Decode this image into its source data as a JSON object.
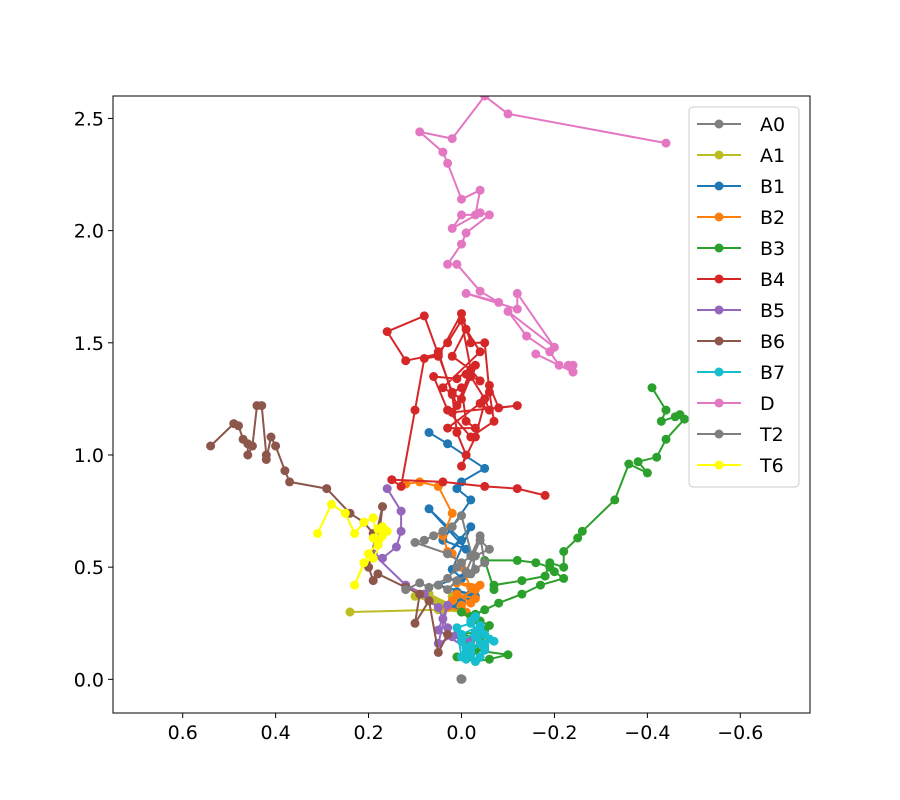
{
  "chart_data": {
    "type": "line",
    "title": "",
    "xlabel": "",
    "ylabel": "",
    "x_inverted": true,
    "xlim": [
      0.75,
      -0.75
    ],
    "ylim": [
      -0.15,
      2.6
    ],
    "x_ticks": [
      0.6,
      0.4,
      0.2,
      0.0,
      -0.2,
      -0.4,
      -0.6
    ],
    "x_tick_labels": [
      "0.6",
      "0.4",
      "0.2",
      "0.0",
      "−0.2",
      "−0.4",
      "−0.6"
    ],
    "y_ticks": [
      0.0,
      0.5,
      1.0,
      1.5,
      2.0,
      2.5
    ],
    "y_tick_labels": [
      "0.0",
      "0.5",
      "1.0",
      "1.5",
      "2.0",
      "2.5"
    ],
    "grid": false,
    "legend_position": "top-right",
    "series": [
      {
        "name": "A0",
        "color": "#7f7f7f",
        "x": [
          0.0,
          0.001,
          -0.001,
          0.0,
          0.001
        ],
        "y": [
          0.0,
          0.003,
          0.001,
          0.002,
          0.0
        ]
      },
      {
        "name": "A1",
        "color": "#bcbd22",
        "x": [
          0.24,
          0.05,
          0.0,
          0.02,
          -0.02,
          0.01,
          0.06,
          0.03,
          0.07,
          0.02,
          0.04,
          0.0,
          0.1
        ],
        "y": [
          0.3,
          0.31,
          0.33,
          0.37,
          0.36,
          0.34,
          0.35,
          0.32,
          0.38,
          0.33,
          0.31,
          0.3,
          0.37
        ]
      },
      {
        "name": "B1",
        "color": "#1f77b4",
        "x": [
          0.07,
          0.03,
          -0.05,
          0.0,
          0.01,
          -0.02,
          0.04,
          -0.01,
          0.07,
          0.0,
          0.03,
          -0.02,
          0.02,
          0.0,
          -0.01,
          0.05,
          -0.02,
          0.01,
          0.0,
          -0.03,
          0.02,
          0.0
        ],
        "y": [
          1.1,
          1.05,
          0.94,
          0.88,
          0.85,
          0.8,
          0.62,
          0.58,
          0.76,
          0.62,
          0.56,
          0.68,
          0.49,
          0.45,
          0.47,
          0.42,
          0.38,
          0.39,
          0.35,
          0.37,
          0.33,
          0.3
        ]
      },
      {
        "name": "B2",
        "color": "#ff7f0e",
        "x": [
          0.12,
          0.09,
          0.05,
          0.02,
          0.04,
          0.03,
          0.02,
          0.0,
          -0.02,
          0.01,
          -0.04,
          -0.03,
          0.02,
          0.03,
          -0.01,
          0.0,
          -0.03,
          0.01,
          -0.02
        ],
        "y": [
          0.87,
          0.88,
          0.86,
          0.74,
          0.64,
          0.57,
          0.56,
          0.5,
          0.41,
          0.43,
          0.42,
          0.4,
          0.35,
          0.32,
          0.3,
          0.33,
          0.36,
          0.38,
          0.34
        ]
      },
      {
        "name": "B3",
        "color": "#2ca02c",
        "x": [
          -0.41,
          -0.44,
          -0.43,
          -0.46,
          -0.47,
          -0.48,
          -0.44,
          -0.42,
          -0.38,
          -0.4,
          -0.36,
          -0.33,
          -0.26,
          -0.25,
          -0.22,
          -0.22,
          -0.19,
          -0.18,
          -0.13,
          -0.07,
          -0.07,
          -0.05,
          -0.12,
          -0.16,
          -0.19,
          -0.2,
          -0.22,
          -0.17,
          -0.13,
          -0.08,
          -0.05,
          -0.02,
          -0.06,
          -0.03,
          0.0,
          -0.04,
          -0.01,
          -0.05,
          -0.02,
          0.01,
          -0.03,
          -0.06,
          -0.1,
          -0.03,
          -0.01,
          -0.04,
          -0.02,
          0.0,
          -0.05,
          -0.03
        ],
        "y": [
          1.3,
          1.2,
          1.15,
          1.17,
          1.18,
          1.16,
          1.07,
          0.99,
          0.97,
          0.92,
          0.96,
          0.8,
          0.66,
          0.63,
          0.57,
          0.5,
          0.52,
          0.46,
          0.44,
          0.42,
          0.4,
          0.53,
          0.53,
          0.52,
          0.5,
          0.48,
          0.45,
          0.42,
          0.38,
          0.34,
          0.31,
          0.28,
          0.24,
          0.21,
          0.2,
          0.18,
          0.16,
          0.14,
          0.12,
          0.1,
          0.08,
          0.09,
          0.11,
          0.13,
          0.15,
          0.26,
          0.28,
          0.3,
          0.22,
          0.29
        ]
      },
      {
        "name": "B4",
        "color": "#d62728",
        "x": [
          -0.18,
          -0.12,
          -0.05,
          0.04,
          0.15,
          0.13,
          0.1,
          0.08,
          0.05,
          0.0,
          -0.02,
          -0.05,
          -0.06,
          -0.07,
          -0.02,
          0.03,
          0.06,
          0.01,
          -0.03,
          0.0,
          0.04,
          -0.04,
          -0.01,
          0.02,
          -0.02,
          0.01,
          0.08,
          0.16,
          0.12,
          0.05,
          0.02,
          0.0,
          -0.01,
          -0.03,
          0.03,
          -0.04,
          -0.06,
          -0.05,
          -0.02,
          0.02,
          -0.12,
          -0.08,
          -0.06,
          -0.03,
          0.0,
          -0.01,
          0.01,
          0.02,
          0.05,
          0.03,
          0.0,
          -0.02,
          -0.04,
          -0.01
        ],
        "y": [
          0.82,
          0.85,
          0.86,
          0.88,
          0.89,
          0.86,
          1.2,
          1.43,
          1.44,
          1.63,
          1.5,
          1.5,
          1.28,
          1.15,
          1.08,
          1.2,
          1.35,
          1.34,
          1.4,
          1.25,
          1.3,
          1.46,
          1.56,
          1.44,
          1.38,
          1.22,
          1.62,
          1.55,
          1.42,
          1.45,
          1.28,
          1.3,
          1.15,
          1.12,
          1.12,
          1.23,
          1.2,
          1.25,
          1.35,
          1.19,
          1.22,
          1.21,
          1.31,
          1.08,
          0.95,
          1.0,
          1.1,
          1.27,
          1.46,
          1.5,
          1.6,
          1.38,
          1.33,
          1.36
        ]
      },
      {
        "name": "B5",
        "color": "#9467bd",
        "x": [
          0.16,
          0.13,
          0.13,
          0.14,
          0.17,
          0.19,
          0.12,
          0.08,
          0.07,
          0.05,
          0.04,
          0.03,
          0.02,
          0.0,
          -0.02,
          0.01,
          0.05,
          0.03,
          0.05,
          -0.01
        ],
        "y": [
          0.85,
          0.75,
          0.66,
          0.59,
          0.54,
          0.56,
          0.42,
          0.38,
          0.35,
          0.32,
          0.27,
          0.23,
          0.19,
          0.18,
          0.17,
          0.2,
          0.16,
          0.33,
          0.22,
          0.14
        ]
      },
      {
        "name": "B6",
        "color": "#8c564b",
        "x": [
          0.54,
          0.49,
          0.48,
          0.47,
          0.46,
          0.46,
          0.45,
          0.44,
          0.43,
          0.42,
          0.42,
          0.41,
          0.4,
          0.38,
          0.37,
          0.29,
          0.24,
          0.21,
          0.19,
          0.18,
          0.17,
          0.2,
          0.19,
          0.18,
          0.12,
          0.09,
          0.1,
          0.07,
          0.05,
          0.03
        ],
        "y": [
          1.04,
          1.14,
          1.13,
          1.07,
          1.05,
          1.0,
          1.04,
          1.22,
          1.22,
          1.0,
          0.98,
          1.08,
          1.04,
          0.93,
          0.88,
          0.85,
          0.74,
          0.7,
          0.65,
          0.6,
          0.77,
          0.5,
          0.44,
          0.47,
          0.41,
          0.38,
          0.25,
          0.35,
          0.12,
          0.2
        ]
      },
      {
        "name": "B7",
        "color": "#17becf",
        "x": [
          -0.07,
          -0.05,
          -0.04,
          -0.03,
          -0.02,
          -0.01,
          0.0,
          0.01,
          -0.02,
          -0.03,
          -0.04,
          0.0,
          -0.01,
          -0.02,
          -0.03,
          -0.05,
          -0.06,
          -0.04,
          -0.02,
          -0.01,
          0.0,
          -0.03,
          -0.02,
          -0.05,
          -0.04
        ],
        "y": [
          0.17,
          0.2,
          0.22,
          0.19,
          0.15,
          0.12,
          0.1,
          0.23,
          0.25,
          0.28,
          0.24,
          0.2,
          0.14,
          0.11,
          0.08,
          0.13,
          0.18,
          0.16,
          0.12,
          0.09,
          0.17,
          0.21,
          0.26,
          0.15,
          0.1
        ]
      },
      {
        "name": "D",
        "color": "#e377c2",
        "x": [
          -0.44,
          -0.1,
          -0.05,
          0.02,
          0.09,
          0.04,
          0.03,
          0.0,
          -0.04,
          -0.03,
          0.0,
          0.02,
          -0.04,
          -0.06,
          -0.01,
          0.0,
          0.03,
          0.01,
          -0.04,
          -0.08,
          -0.01,
          -0.12,
          -0.12,
          -0.2,
          -0.1,
          -0.14,
          -0.19,
          -0.21,
          -0.24,
          -0.23,
          -0.24,
          -0.24,
          -0.24,
          -0.16
        ],
        "y": [
          2.39,
          2.52,
          2.6,
          2.41,
          2.44,
          2.35,
          2.3,
          2.14,
          2.18,
          2.07,
          2.07,
          2.01,
          2.08,
          2.07,
          1.99,
          1.94,
          1.85,
          1.85,
          1.73,
          1.68,
          1.72,
          1.65,
          1.72,
          1.48,
          1.64,
          1.53,
          1.46,
          1.4,
          1.37,
          1.4,
          1.37,
          1.4,
          1.37,
          1.45
        ]
      },
      {
        "name": "T2",
        "color": "#7f7f7f",
        "x": [
          0.12,
          0.09,
          0.07,
          0.03,
          0.01,
          -0.02,
          -0.04,
          -0.05,
          -0.03,
          0.0,
          0.02,
          0.04,
          0.06,
          0.08,
          0.1,
          0.03,
          0.0,
          -0.01,
          -0.04,
          -0.06,
          -0.03,
          -0.02,
          0.01,
          0.03,
          0.05
        ],
        "y": [
          0.4,
          0.43,
          0.41,
          0.45,
          0.5,
          0.55,
          0.64,
          0.52,
          0.49,
          0.73,
          0.68,
          0.66,
          0.64,
          0.62,
          0.61,
          0.56,
          0.52,
          0.48,
          0.62,
          0.58,
          0.55,
          0.47,
          0.44,
          0.4,
          0.42
        ]
      },
      {
        "name": "T6",
        "color": "#ffff00",
        "x": [
          0.31,
          0.28,
          0.25,
          0.23,
          0.21,
          0.19,
          0.18,
          0.17,
          0.16,
          0.19,
          0.21,
          0.23,
          0.2,
          0.18,
          0.19,
          0.17,
          0.18
        ],
        "y": [
          0.65,
          0.78,
          0.74,
          0.65,
          0.7,
          0.72,
          0.6,
          0.68,
          0.66,
          0.54,
          0.52,
          0.42,
          0.56,
          0.61,
          0.63,
          0.64,
          0.67
        ]
      }
    ]
  }
}
